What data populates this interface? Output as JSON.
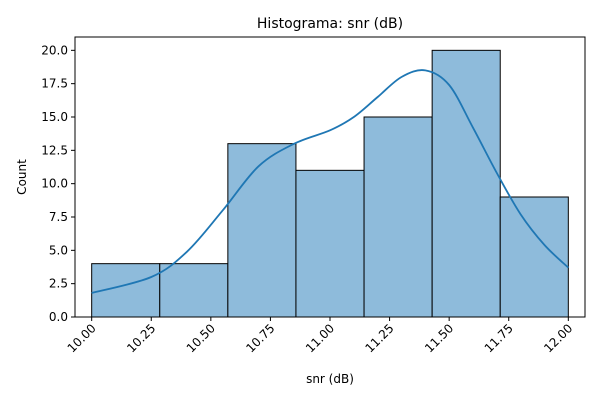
{
  "chart_data": {
    "type": "histogram",
    "title": "Histograma: snr (dB)",
    "xlabel": "snr (dB)",
    "ylabel": "Count",
    "xlim": [
      9.93,
      12.07
    ],
    "ylim": [
      0,
      21
    ],
    "grid": false,
    "bins": [
      {
        "start": 10.0,
        "end": 10.2857,
        "count": 4
      },
      {
        "start": 10.2857,
        "end": 10.5714,
        "count": 4
      },
      {
        "start": 10.5714,
        "end": 10.8571,
        "count": 13
      },
      {
        "start": 10.8571,
        "end": 11.1429,
        "count": 11
      },
      {
        "start": 11.1429,
        "end": 11.4286,
        "count": 15
      },
      {
        "start": 11.4286,
        "end": 11.7143,
        "count": 20
      },
      {
        "start": 11.7143,
        "end": 12.0,
        "count": 9
      }
    ],
    "kde": {
      "x": [
        10.0,
        10.25,
        10.4,
        10.55,
        10.7,
        10.85,
        11.0,
        11.1,
        11.2,
        11.3,
        11.4,
        11.5,
        11.6,
        11.7,
        11.8,
        11.9,
        12.0
      ],
      "y": [
        1.8,
        3.0,
        4.9,
        8.0,
        11.3,
        13.0,
        14.0,
        15.0,
        16.5,
        18.0,
        18.5,
        17.4,
        14.2,
        10.8,
        7.7,
        5.4,
        3.7
      ]
    },
    "xticks": [
      "10.00",
      "10.25",
      "10.50",
      "10.75",
      "11.00",
      "11.25",
      "11.50",
      "11.75",
      "12.00"
    ],
    "yticks": [
      "0.0",
      "2.5",
      "5.0",
      "7.5",
      "10.0",
      "12.5",
      "15.0",
      "17.5",
      "20.0"
    ],
    "colors": {
      "bar_fill": "#8ebbdb",
      "bar_edge": "#000000",
      "kde_line": "#1f77b4"
    }
  }
}
